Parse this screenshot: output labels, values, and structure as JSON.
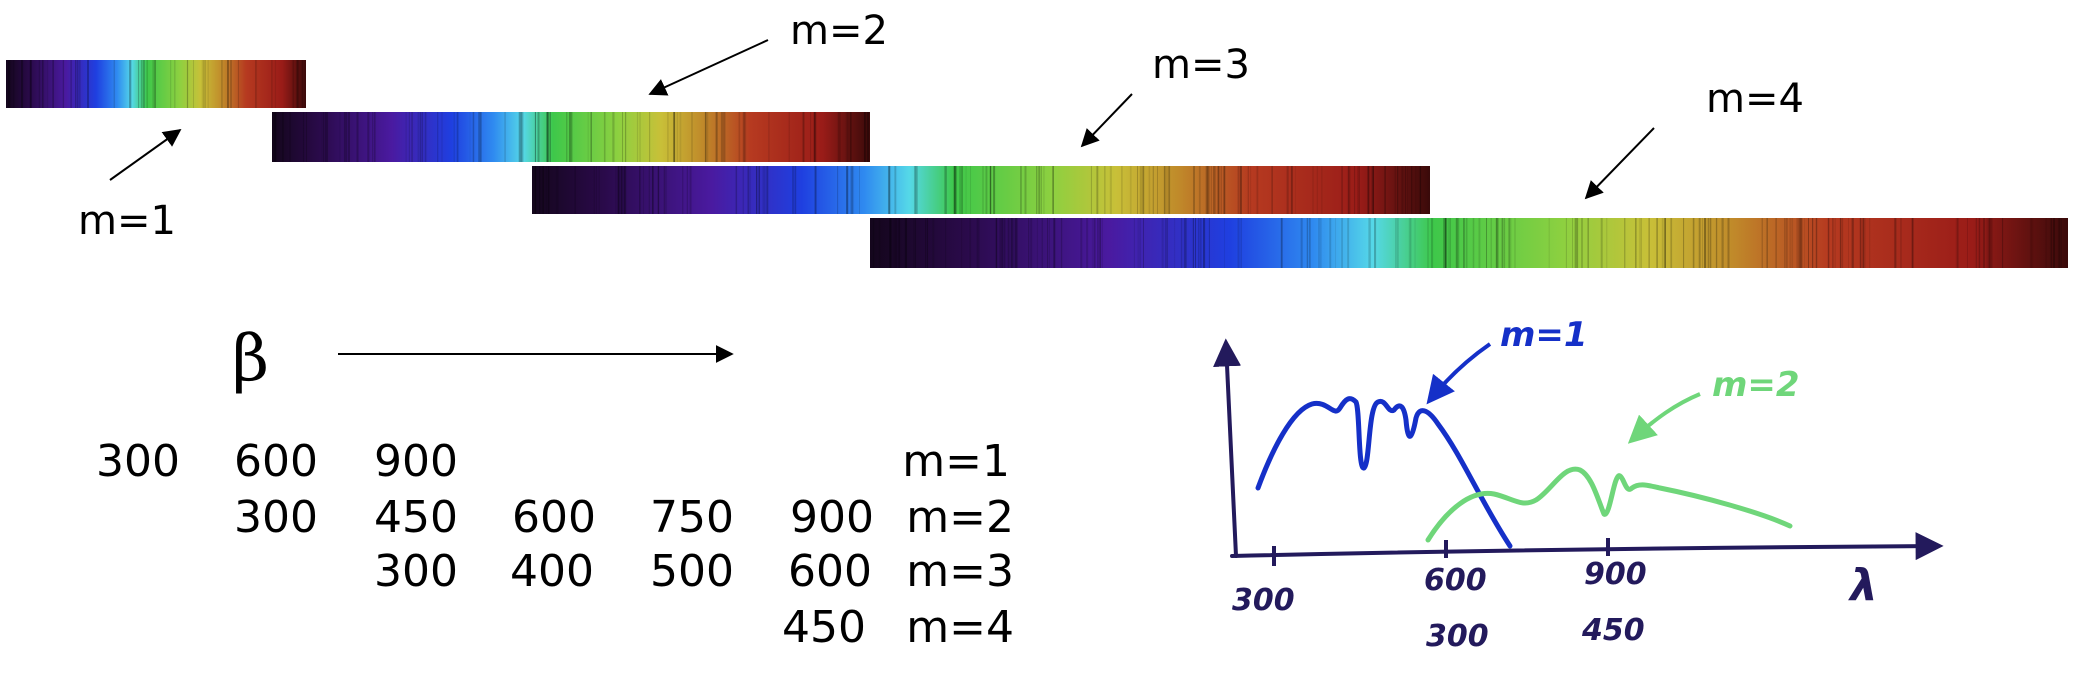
{
  "spectra": {
    "bands": [
      {
        "order_label": "m=1"
      },
      {
        "order_label": "m=2"
      },
      {
        "order_label": "m=3"
      },
      {
        "order_label": "m=4"
      }
    ],
    "colors": [
      "#14061c",
      "#2a0a4a",
      "#4a1aa0",
      "#1f3fe0",
      "#2f8af0",
      "#55d8e8",
      "#3ec84a",
      "#8ed040",
      "#c8c038",
      "#c08a2a",
      "#b63a20",
      "#9a1c18",
      "#3a0a0a"
    ]
  },
  "beta": {
    "symbol": "β"
  },
  "table": {
    "rows": [
      {
        "values": [
          "300",
          "600",
          "900"
        ],
        "order": "m=1"
      },
      {
        "values": [
          "300",
          "450",
          "600",
          "750",
          "900"
        ],
        "order": "m=2"
      },
      {
        "values": [
          "300",
          "400",
          "500",
          "600"
        ],
        "order": "m=3"
      },
      {
        "values": [
          "450"
        ],
        "order": "m=4"
      }
    ]
  },
  "sketch": {
    "label_m1": "m=1",
    "label_m2": "m=2",
    "ticks": [
      "300",
      "600",
      "900"
    ],
    "sub_ticks": [
      "300",
      "450"
    ],
    "lambda": "λ",
    "colors": {
      "m1": "#1530c8",
      "m2": "#6fd67a",
      "axis": "#231a5c"
    }
  }
}
